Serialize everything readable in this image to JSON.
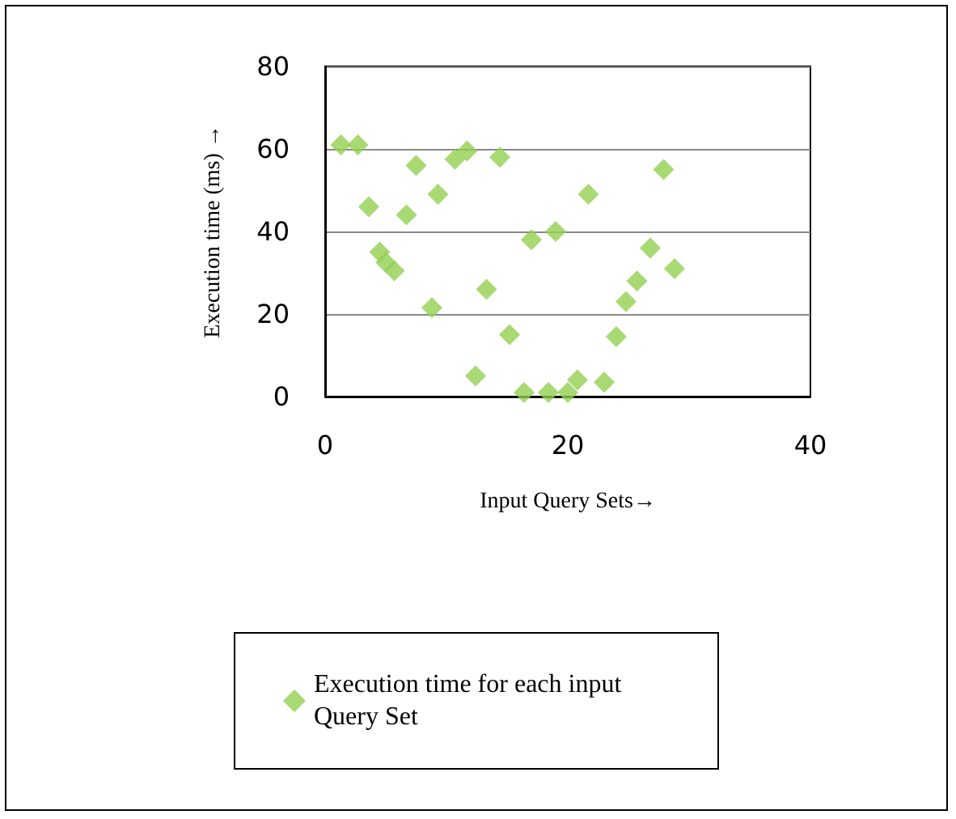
{
  "chart_data": {
    "type": "scatter",
    "xlabel": "Input Query Sets→",
    "ylabel": "Execution time (ms) →",
    "xlim": [
      0,
      40
    ],
    "xticks": [
      0,
      20,
      40
    ],
    "ylim": [
      0,
      80
    ],
    "yticks": [
      0,
      20,
      40,
      60,
      80
    ],
    "grid": "y",
    "legend": "bottom",
    "marker": "diamond",
    "series": [
      {
        "name": "Execution time for each input Query Set",
        "color": "#92d050",
        "x": [
          1.3,
          2.7,
          3.6,
          4.5,
          5,
          5.7,
          6.7,
          7.5,
          8.8,
          9.3,
          10.7,
          11.7,
          12.4,
          13.3,
          14.4,
          15.2,
          16.4,
          17,
          18.4,
          19,
          20,
          20.8,
          21.7,
          23,
          24,
          24.8,
          25.7,
          26.8,
          27.9,
          28.8
        ],
        "values": [
          61,
          61,
          46,
          35,
          32.5,
          30.5,
          44,
          56,
          21.5,
          49,
          57.5,
          59.5,
          5,
          26,
          58,
          15,
          1,
          38,
          1,
          40,
          1,
          4,
          49,
          3.5,
          14.5,
          23,
          28,
          36,
          55,
          31
        ]
      }
    ]
  }
}
